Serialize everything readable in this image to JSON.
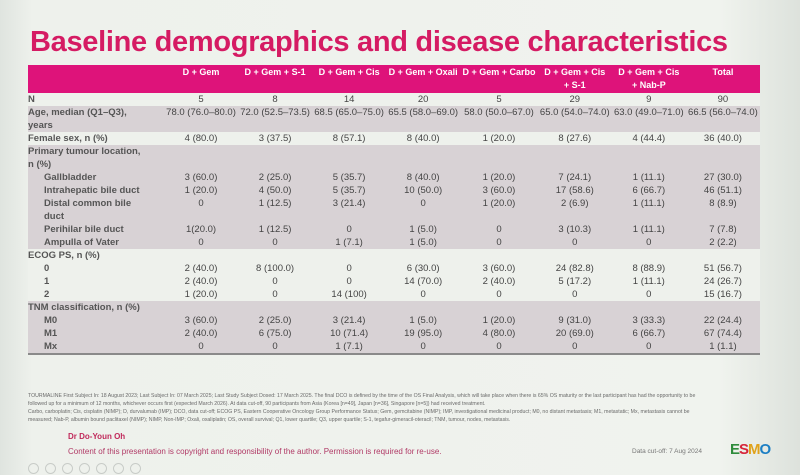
{
  "title": "Baseline demographics and disease characteristics",
  "columns": [
    {
      "line1": "D + Gem",
      "line2": ""
    },
    {
      "line1": "D + Gem + S-1",
      "line2": ""
    },
    {
      "line1": "D + Gem + Cis",
      "line2": ""
    },
    {
      "line1": "D + Gem + Oxali",
      "line2": ""
    },
    {
      "line1": "D + Gem + Carbo",
      "line2": ""
    },
    {
      "line1": "D + Gem + Cis",
      "line2": "+ S-1"
    },
    {
      "line1": "D + Gem + Cis",
      "line2": "+ Nab-P"
    },
    {
      "line1": "Total",
      "line2": ""
    }
  ],
  "rows": [
    {
      "label": "N",
      "style": "w",
      "sub": false,
      "values": [
        "5",
        "8",
        "14",
        "20",
        "5",
        "29",
        "9",
        "90"
      ]
    },
    {
      "label": "Age, median (Q1–Q3),",
      "style": "g",
      "sub": false,
      "values": [
        "78.0 (76.0–80.0)",
        "72.0 (52.5–73.5)",
        "68.5 (65.0–75.0)",
        "65.5 (58.0–69.0)",
        "58.0 (50.0–67.0)",
        "65.0 (54.0–74.0)",
        "63.0 (49.0–71.0)",
        "66.5 (56.0–74.0)"
      ]
    },
    {
      "label": "years",
      "style": "g",
      "sub": false,
      "values": [
        "",
        "",
        "",
        "",
        "",
        "",
        "",
        ""
      ]
    },
    {
      "label": "Female sex, n (%)",
      "style": "w",
      "sub": false,
      "values": [
        "4 (80.0)",
        "3 (37.5)",
        "8 (57.1)",
        "8 (40.0)",
        "1 (20.0)",
        "8 (27.6)",
        "4 (44.4)",
        "36 (40.0)"
      ]
    },
    {
      "label": "Primary tumour location,",
      "style": "g",
      "sub": false,
      "values": [
        "",
        "",
        "",
        "",
        "",
        "",
        "",
        ""
      ]
    },
    {
      "label": "n (%)",
      "style": "g",
      "sub": false,
      "values": [
        "",
        "",
        "",
        "",
        "",
        "",
        "",
        ""
      ]
    },
    {
      "label": "Gallbladder",
      "style": "g",
      "sub": true,
      "values": [
        "3 (60.0)",
        "2 (25.0)",
        "5 (35.7)",
        "8 (40.0)",
        "1 (20.0)",
        "7 (24.1)",
        "1 (11.1)",
        "27 (30.0)"
      ]
    },
    {
      "label": "Intrahepatic bile duct",
      "style": "g",
      "sub": true,
      "values": [
        "1 (20.0)",
        "4 (50.0)",
        "5 (35.7)",
        "10 (50.0)",
        "3 (60.0)",
        "17 (58.6)",
        "6 (66.7)",
        "46 (51.1)"
      ]
    },
    {
      "label": "Distal common bile",
      "style": "g",
      "sub": true,
      "values": [
        "0",
        "1 (12.5)",
        "3 (21.4)",
        "0",
        "1 (20.0)",
        "2 (6.9)",
        "1 (11.1)",
        "8 (8.9)"
      ]
    },
    {
      "label": "duct",
      "style": "g",
      "sub": true,
      "values": [
        "",
        "",
        "",
        "",
        "",
        "",
        "",
        ""
      ]
    },
    {
      "label": "Perihilar bile duct",
      "style": "g",
      "sub": true,
      "values": [
        "1(20.0)",
        "1 (12.5)",
        "0",
        "1 (5.0)",
        "0",
        "3 (10.3)",
        "1 (11.1)",
        "7 (7.8)"
      ]
    },
    {
      "label": "Ampulla of Vater",
      "style": "g",
      "sub": true,
      "values": [
        "0",
        "0",
        "1 (7.1)",
        "1 (5.0)",
        "0",
        "0",
        "0",
        "2 (2.2)"
      ]
    },
    {
      "label": "ECOG PS, n (%)",
      "style": "w",
      "sub": false,
      "values": [
        "",
        "",
        "",
        "",
        "",
        "",
        "",
        ""
      ]
    },
    {
      "label": "0",
      "style": "w",
      "sub": true,
      "values": [
        "2 (40.0)",
        "8 (100.0)",
        "0",
        "6 (30.0)",
        "3 (60.0)",
        "24 (82.8)",
        "8 (88.9)",
        "51 (56.7)"
      ]
    },
    {
      "label": "1",
      "style": "w",
      "sub": true,
      "values": [
        "2 (40.0)",
        "0",
        "0",
        "14 (70.0)",
        "2 (40.0)",
        "5 (17.2)",
        "1 (11.1)",
        "24 (26.7)"
      ]
    },
    {
      "label": "2",
      "style": "w",
      "sub": true,
      "values": [
        "1 (20.0)",
        "0",
        "14 (100)",
        "0",
        "0",
        "0",
        "0",
        "15 (16.7)"
      ]
    },
    {
      "label": "TNM classification, n (%)",
      "style": "g",
      "sub": false,
      "values": [
        "",
        "",
        "",
        "",
        "",
        "",
        "",
        ""
      ]
    },
    {
      "label": "M0",
      "style": "g",
      "sub": true,
      "values": [
        "3 (60.0)",
        "2 (25.0)",
        "3 (21.4)",
        "1 (5.0)",
        "1 (20.0)",
        "9 (31.0)",
        "3 (33.3)",
        "22 (24.4)"
      ]
    },
    {
      "label": "M1",
      "style": "g",
      "sub": true,
      "values": [
        "2 (40.0)",
        "6 (75.0)",
        "10 (71.4)",
        "19 (95.0)",
        "4 (80.0)",
        "20 (69.0)",
        "6 (66.7)",
        "67 (74.4)"
      ]
    },
    {
      "label": "Mx",
      "style": "g last",
      "sub": true,
      "values": [
        "0",
        "0",
        "1 (7.1)",
        "0",
        "0",
        "0",
        "0",
        "1 (1.1)"
      ]
    }
  ],
  "footnotes": [
    "TOURMALINE First Subject In: 18 August 2023; Last Subject In: 07 March 2025; Last Study Subject Dosed: 17 March 2025. The final DCO is defined by the time of the OS Final Analysis, which will take place when there is 65% OS maturity or the last participant has had the opportunity to be",
    "followed up for a minimum of 12 months, whichever occurs first (expected March 2026). At data cut-off, 90 participants from Asia (Korea [n=49], Japan [n=36], Singapore [n=5]) had received treatment.",
    "Carbo, carboplatin; Cis, cisplatin (NIMP); D, durvalumab (IMP); DCO, data cut-off; ECOG PS, Eastern Cooperative Oncology Group Performance Status; Gem, gemcitabine (NIMP); IMP, investigational medicinal product; M0, no distant metastasis; M1, metastatic; Mx, metastasis cannot be",
    "measured; Nab-P, albumin bound paclitaxel (NIMP); NIMP, Non-IMP; Oxali, oxaliplatin; OS, overall survival; Q1, lower quartile; Q3, upper quartile; S-1, tegafur-gimeracil-oteracil; TNM, tumour, nodes, metastasis."
  ],
  "author": "Dr Do-Youn Oh",
  "copyright": "Content of this presentation is copyright and responsibility of the author. Permission is required for re-use.",
  "data_cutoff": "Data cut-off: 7 Aug 2024",
  "logo": {
    "e": "E",
    "s": "S",
    "m": "M",
    "o": "O"
  },
  "colors": {
    "title": "#d51b63",
    "header": "#de137a",
    "band": "#d8d2d5"
  }
}
